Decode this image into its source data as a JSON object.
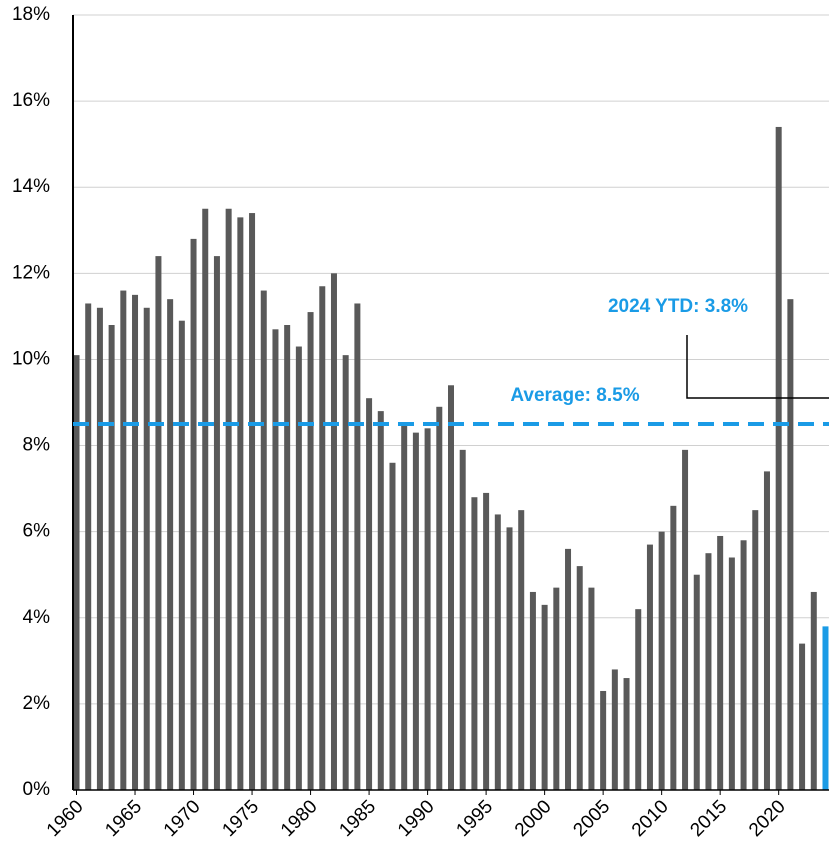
{
  "chart_data": {
    "type": "bar",
    "x": [
      1960,
      1961,
      1962,
      1963,
      1964,
      1965,
      1966,
      1967,
      1968,
      1969,
      1970,
      1971,
      1972,
      1973,
      1974,
      1975,
      1976,
      1977,
      1978,
      1979,
      1980,
      1981,
      1982,
      1983,
      1984,
      1985,
      1986,
      1987,
      1988,
      1989,
      1990,
      1991,
      1992,
      1993,
      1994,
      1995,
      1996,
      1997,
      1998,
      1999,
      2000,
      2001,
      2002,
      2003,
      2004,
      2005,
      2006,
      2007,
      2008,
      2009,
      2010,
      2011,
      2012,
      2013,
      2014,
      2015,
      2016,
      2017,
      2018,
      2019,
      2020,
      2021,
      2022,
      2023,
      2024
    ],
    "values": [
      10.1,
      11.3,
      11.2,
      10.8,
      11.6,
      11.5,
      11.2,
      12.4,
      11.4,
      10.9,
      12.8,
      13.5,
      12.4,
      13.5,
      13.3,
      13.4,
      11.6,
      10.7,
      10.8,
      10.3,
      11.1,
      11.7,
      12.0,
      10.1,
      11.3,
      9.1,
      8.8,
      7.6,
      8.5,
      8.3,
      8.4,
      8.9,
      9.4,
      7.9,
      6.8,
      6.9,
      6.4,
      6.1,
      6.5,
      4.6,
      4.3,
      4.7,
      5.6,
      5.2,
      4.7,
      2.3,
      2.8,
      2.6,
      4.2,
      5.7,
      6.0,
      6.6,
      7.9,
      5.0,
      5.5,
      5.9,
      5.4,
      5.8,
      6.5,
      7.4,
      15.4,
      11.4,
      3.4,
      4.6,
      3.8
    ],
    "colors": [
      "#595959",
      "#595959",
      "#595959",
      "#595959",
      "#595959",
      "#595959",
      "#595959",
      "#595959",
      "#595959",
      "#595959",
      "#595959",
      "#595959",
      "#595959",
      "#595959",
      "#595959",
      "#595959",
      "#595959",
      "#595959",
      "#595959",
      "#595959",
      "#595959",
      "#595959",
      "#595959",
      "#595959",
      "#595959",
      "#595959",
      "#595959",
      "#595959",
      "#595959",
      "#595959",
      "#595959",
      "#595959",
      "#595959",
      "#595959",
      "#595959",
      "#595959",
      "#595959",
      "#595959",
      "#595959",
      "#595959",
      "#595959",
      "#595959",
      "#595959",
      "#595959",
      "#595959",
      "#595959",
      "#595959",
      "#595959",
      "#595959",
      "#595959",
      "#595959",
      "#595959",
      "#595959",
      "#595959",
      "#595959",
      "#595959",
      "#595959",
      "#595959",
      "#595959",
      "#595959",
      "#595959",
      "#595959",
      "#595959",
      "#595959",
      "#1a9be6"
    ],
    "xlim": [
      1959.7,
      2024.3
    ],
    "xticks": [
      1960,
      1965,
      1970,
      1975,
      1980,
      1985,
      1990,
      1995,
      2000,
      2005,
      2010,
      2015,
      2020
    ],
    "ylim": [
      0,
      18
    ],
    "yticks": [
      {
        "value": 0,
        "label": "0%"
      },
      {
        "value": 2,
        "label": "2%"
      },
      {
        "value": 4,
        "label": "4%"
      },
      {
        "value": 6,
        "label": "6%"
      },
      {
        "value": 8,
        "label": "8%"
      },
      {
        "value": 10,
        "label": "10%"
      },
      {
        "value": 12,
        "label": "12%"
      },
      {
        "value": 14,
        "label": "14%"
      },
      {
        "value": 16,
        "label": "16%"
      },
      {
        "value": 18,
        "label": "18%"
      }
    ],
    "grid": true,
    "reference_lines": [
      {
        "value": 8.5,
        "label": "Average: 8.5%",
        "color": "#1a9be6"
      }
    ],
    "annotations": [
      {
        "text": "2024 YTD: 3.8%",
        "color": "#1a9be6"
      }
    ]
  }
}
